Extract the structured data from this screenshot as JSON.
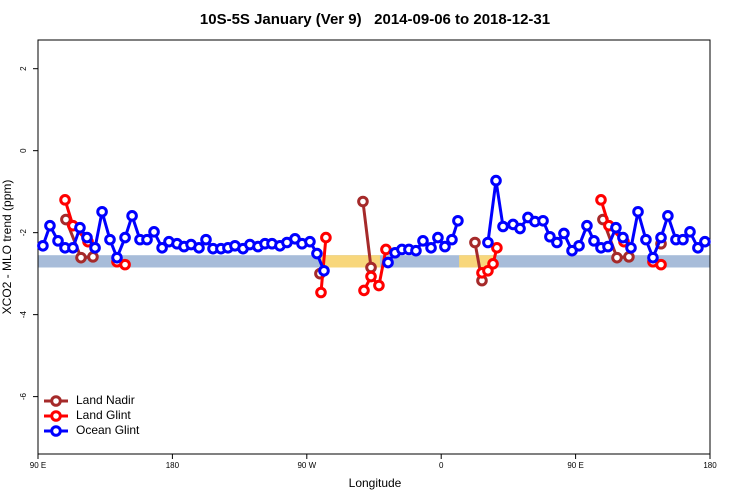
{
  "chart_data": {
    "type": "line",
    "title": "10S-5S January (Ver 9)   2014-09-06 to 2018-12-31",
    "xlabel": "Longitude",
    "ylabel": "XCO2 - MLO trend (ppm)",
    "xlim": [
      90,
      540
    ],
    "ylim": [
      -7.4,
      2.7
    ],
    "xticks": [
      {
        "value": 90,
        "label": "90 E"
      },
      {
        "value": 180,
        "label": "180"
      },
      {
        "value": 270,
        "label": "90 W"
      },
      {
        "value": 360,
        "label": "0"
      },
      {
        "value": 450,
        "label": "90 E"
      },
      {
        "value": 540,
        "label": "180"
      }
    ],
    "yticks": [
      2,
      0,
      -2,
      -4,
      -6
    ],
    "band": {
      "ylim": [
        -2.85,
        -2.55
      ],
      "color": "#a7bcd9"
    },
    "highlight_x": [
      [
        279,
        319
      ],
      [
        372,
        396
      ]
    ],
    "highlight_color": "#f8d77c",
    "legend": "bottom-left",
    "series": [
      {
        "name": "Land Nadir",
        "color": "#a52a2a",
        "x": [
          108.7,
          118.8,
          126.8,
          null,
          278.8,
          null,
          307.6,
          313.0,
          null,
          382.6,
          387.3,
          null,
          468.3,
          477.7,
          485.7,
          null,
          507.2
        ],
        "values": [
          -1.68,
          -2.61,
          -2.59,
          null,
          -3.0,
          null,
          -1.24,
          -2.85,
          null,
          -2.24,
          -3.17,
          null,
          -1.68,
          -2.61,
          -2.59,
          null,
          -2.27
        ]
      },
      {
        "name": "Land Glint",
        "color": "#ff0000",
        "x": [
          108.1,
          113.4,
          123.5,
          null,
          142.9,
          148.3,
          null,
          279.5,
          282.8,
          null,
          308.3,
          313.0,
          318.3,
          323.0,
          null,
          387.3,
          391.3,
          394.7,
          397.3,
          null,
          467.0,
          472.3,
          482.4,
          null,
          501.8,
          507.2
        ],
        "values": [
          -1.2,
          -1.83,
          -2.22,
          null,
          -2.71,
          -2.78,
          null,
          -3.46,
          -2.12,
          null,
          -3.41,
          -3.07,
          -3.29,
          -2.41,
          null,
          -2.98,
          -2.93,
          -2.76,
          -2.37,
          null,
          -1.2,
          -1.83,
          -2.22,
          null,
          -2.71,
          -2.78
        ]
      },
      {
        "name": "Ocean Glint",
        "color": "#0000ff",
        "x": [
          93.3,
          98.0,
          103.4,
          108.1,
          113.4,
          118.1,
          122.8,
          128.2,
          132.9,
          138.2,
          142.9,
          148.3,
          153.0,
          158.3,
          163.0,
          167.7,
          173.1,
          177.7,
          183.1,
          187.8,
          192.5,
          197.8,
          202.5,
          207.2,
          212.5,
          217.2,
          221.9,
          227.3,
          231.9,
          237.3,
          242.0,
          246.7,
          252.0,
          256.7,
          262.1,
          266.8,
          272.1,
          276.8,
          281.5,
          null,
          324.4,
          329.1,
          333.7,
          338.4,
          343.1,
          347.8,
          353.2,
          357.8,
          362.5,
          367.2,
          371.2,
          null,
          391.3,
          396.7,
          401.4,
          408.1,
          412.8,
          418.1,
          422.8,
          428.2,
          432.8,
          437.5,
          442.2,
          447.6,
          452.3,
          457.6,
          462.3,
          467.0,
          471.7,
          477.0,
          481.7,
          487.1,
          491.8,
          497.1,
          501.8,
          507.2,
          511.8,
          517.2,
          521.9,
          526.6,
          531.9,
          536.6
        ],
        "values": [
          -2.32,
          -1.83,
          -2.2,
          -2.37,
          -2.37,
          -1.88,
          -2.12,
          -2.37,
          -1.49,
          -2.17,
          -2.61,
          -2.12,
          -1.59,
          -2.17,
          -2.17,
          -1.98,
          -2.37,
          -2.22,
          -2.27,
          -2.34,
          -2.29,
          -2.37,
          -2.17,
          -2.39,
          -2.39,
          -2.37,
          -2.32,
          -2.39,
          -2.29,
          -2.34,
          -2.27,
          -2.27,
          -2.32,
          -2.24,
          -2.15,
          -2.27,
          -2.22,
          -2.51,
          -2.93,
          null,
          -2.73,
          -2.49,
          -2.41,
          -2.41,
          -2.44,
          -2.2,
          -2.37,
          -2.12,
          -2.34,
          -2.17,
          -1.71,
          null,
          -2.24,
          -0.73,
          -1.85,
          -1.8,
          -1.9,
          -1.63,
          -1.73,
          -1.71,
          -2.1,
          -2.24,
          -2.02,
          -2.44,
          -2.32,
          -1.83,
          -2.2,
          -2.37,
          -2.34,
          -1.88,
          -2.12,
          -2.37,
          -1.49,
          -2.17,
          -2.61,
          -2.12,
          -1.59,
          -2.17,
          -2.17,
          -1.98,
          -2.37,
          -2.22
        ]
      }
    ]
  }
}
